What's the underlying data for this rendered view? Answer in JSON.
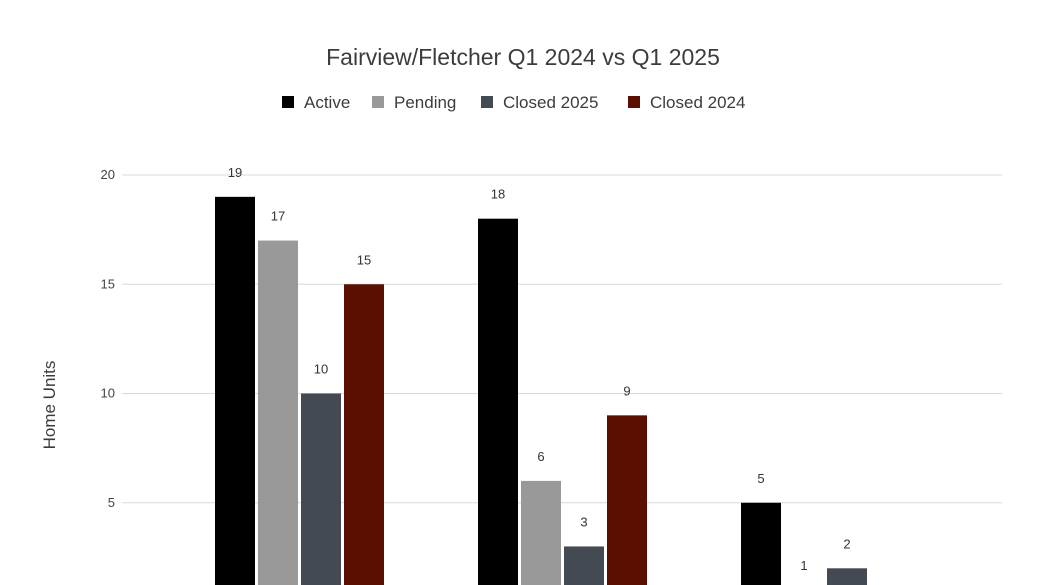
{
  "chart_data": {
    "type": "bar",
    "title": "Fairview/Fletcher Q1 2024 vs Q1 2025",
    "xlabel": "",
    "ylabel": "Home Units",
    "ylim": [
      0,
      20
    ],
    "yticks": [
      "5",
      "10",
      "15",
      "20"
    ],
    "grid": true,
    "legend_position": "top",
    "categories": [
      "",
      "",
      ""
    ],
    "series": [
      {
        "name": "Active",
        "color": "#000000",
        "values": [
          19,
          18,
          5
        ]
      },
      {
        "name": "Pending",
        "color": "#999999",
        "values": [
          17,
          6,
          1
        ]
      },
      {
        "name": "Closed 2025",
        "color": "#434a52",
        "values": [
          10,
          3,
          2
        ]
      },
      {
        "name": "Closed 2024",
        "color": "#5b0f00",
        "values": [
          15,
          9,
          null
        ]
      }
    ]
  }
}
